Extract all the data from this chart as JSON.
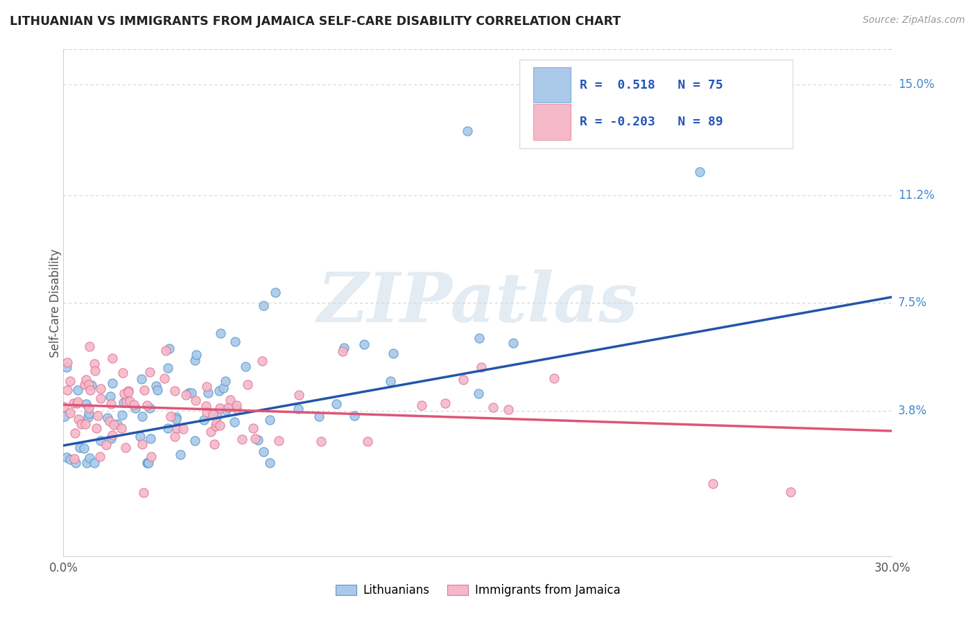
{
  "title": "LITHUANIAN VS IMMIGRANTS FROM JAMAICA SELF-CARE DISABILITY CORRELATION CHART",
  "source": "Source: ZipAtlas.com",
  "ylabel": "Self-Care Disability",
  "xlim": [
    0.0,
    0.3
  ],
  "ylim": [
    -0.012,
    0.162
  ],
  "ytick_labels": [
    "3.8%",
    "7.5%",
    "11.2%",
    "15.0%"
  ],
  "ytick_positions": [
    0.038,
    0.075,
    0.112,
    0.15
  ],
  "blue_scatter_color": "#aac8e8",
  "blue_scatter_edge": "#5599cc",
  "pink_scatter_color": "#f5b8c8",
  "pink_scatter_edge": "#dd7799",
  "blue_line_color": "#2255aa",
  "pink_line_color": "#dd5577",
  "R_blue": 0.518,
  "N_blue": 75,
  "R_pink": -0.203,
  "N_pink": 89,
  "blue_line_start_x": 0.0,
  "blue_line_start_y": 0.026,
  "blue_line_end_x": 0.3,
  "blue_line_end_y": 0.077,
  "pink_line_start_x": 0.0,
  "pink_line_start_y": 0.04,
  "pink_line_end_x": 0.3,
  "pink_line_end_y": 0.031,
  "watermark_text": "ZIPatlas",
  "watermark_color": "#c8d8e8",
  "watermark_alpha": 0.5,
  "legend_blue_label": "Lithuanians",
  "legend_pink_label": "Immigrants from Jamaica",
  "grid_color": "#cccccc",
  "background_color": "#ffffff",
  "title_color": "#222222",
  "ytick_color": "#4488cc",
  "source_color": "#999999",
  "legend_box_color": "#dddddd",
  "legend_text_color": "#2255bb"
}
